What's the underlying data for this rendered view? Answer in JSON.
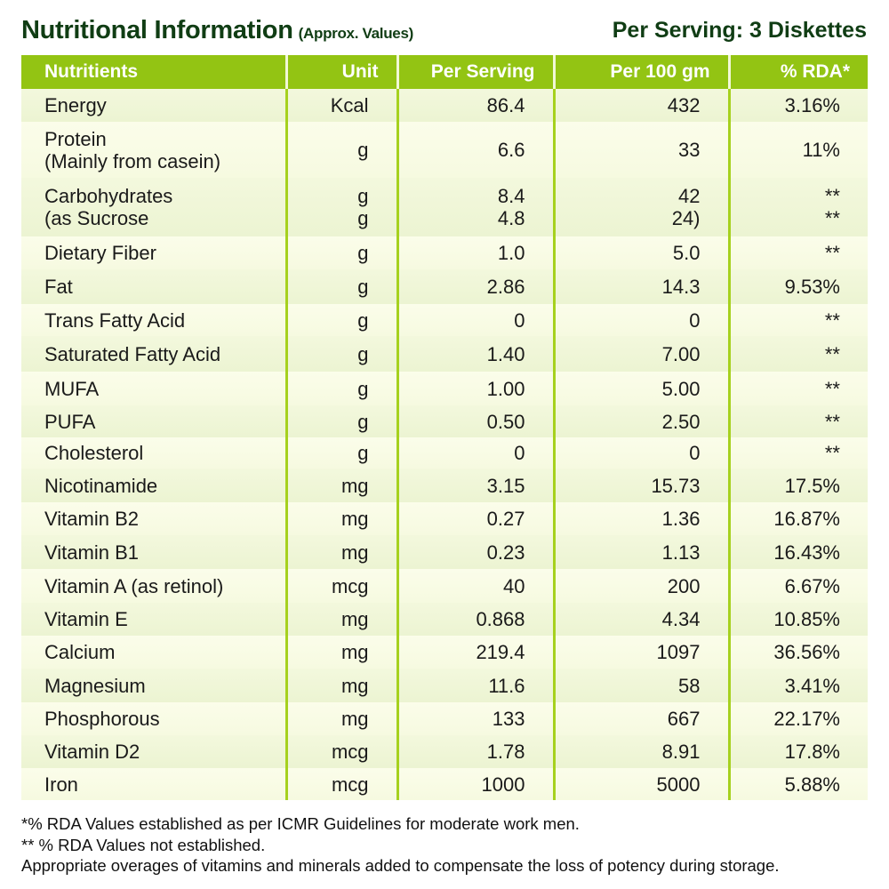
{
  "header": {
    "title": "Nutritional Information",
    "subtitle": "(Approx. Values)",
    "serving": "Per Serving: 3 Diskettes"
  },
  "colors": {
    "header_bg": "#93c413",
    "title": "#103d14",
    "divider": "#a6d11e"
  },
  "table": {
    "columns": [
      "Nutritients",
      "Unit",
      "Per Serving",
      "Per 100 gm",
      "% RDA*"
    ],
    "rows": [
      {
        "name": [
          "Energy"
        ],
        "unit": [
          "Kcal"
        ],
        "per_serving": [
          "86.4"
        ],
        "per_100": [
          "432"
        ],
        "rda": [
          "3.16%"
        ]
      },
      {
        "name": [
          "Protein",
          "(Mainly from casein)"
        ],
        "unit": [
          "g"
        ],
        "per_serving": [
          "6.6"
        ],
        "per_100": [
          "33"
        ],
        "rda": [
          "11%"
        ]
      },
      {
        "name": [
          "Carbohydrates",
          "(as Sucrose"
        ],
        "unit": [
          "g",
          "g"
        ],
        "per_serving": [
          "8.4",
          "4.8"
        ],
        "per_100": [
          "42",
          "24)"
        ],
        "rda": [
          "**",
          "**"
        ]
      },
      {
        "name": [
          "Dietary Fiber"
        ],
        "unit": [
          "g"
        ],
        "per_serving": [
          "1.0"
        ],
        "per_100": [
          "5.0"
        ],
        "rda": [
          "**"
        ]
      },
      {
        "name": [
          "Fat"
        ],
        "unit": [
          "g"
        ],
        "per_serving": [
          "2.86"
        ],
        "per_100": [
          "14.3"
        ],
        "rda": [
          "9.53%"
        ]
      },
      {
        "name": [
          "Trans Fatty Acid"
        ],
        "unit": [
          "g"
        ],
        "per_serving": [
          "0"
        ],
        "per_100": [
          "0"
        ],
        "rda": [
          "**"
        ]
      },
      {
        "name": [
          "Saturated Fatty Acid"
        ],
        "unit": [
          "g"
        ],
        "per_serving": [
          "1.40"
        ],
        "per_100": [
          "7.00"
        ],
        "rda": [
          "**"
        ]
      },
      {
        "name": [
          "MUFA"
        ],
        "unit": [
          "g"
        ],
        "per_serving": [
          "1.00"
        ],
        "per_100": [
          "5.00"
        ],
        "rda": [
          "**"
        ]
      },
      {
        "name": [
          "PUFA"
        ],
        "unit": [
          "g"
        ],
        "per_serving": [
          "0.50"
        ],
        "per_100": [
          "2.50"
        ],
        "rda": [
          "**"
        ]
      },
      {
        "name": [
          "Cholesterol"
        ],
        "unit": [
          "g"
        ],
        "per_serving": [
          "0"
        ],
        "per_100": [
          "0"
        ],
        "rda": [
          "**"
        ]
      },
      {
        "name": [
          "Nicotinamide"
        ],
        "unit": [
          "mg"
        ],
        "per_serving": [
          "3.15"
        ],
        "per_100": [
          "15.73"
        ],
        "rda": [
          "17.5%"
        ]
      },
      {
        "name": [
          "Vitamin B2"
        ],
        "unit": [
          "mg"
        ],
        "per_serving": [
          "0.27"
        ],
        "per_100": [
          "1.36"
        ],
        "rda": [
          "16.87%"
        ]
      },
      {
        "name": [
          "Vitamin B1"
        ],
        "unit": [
          "mg"
        ],
        "per_serving": [
          "0.23"
        ],
        "per_100": [
          "1.13"
        ],
        "rda": [
          "16.43%"
        ]
      },
      {
        "name": [
          "Vitamin A (as retinol)"
        ],
        "unit": [
          "mcg"
        ],
        "per_serving": [
          "40"
        ],
        "per_100": [
          "200"
        ],
        "rda": [
          "6.67%"
        ]
      },
      {
        "name": [
          "Vitamin E"
        ],
        "unit": [
          "mg"
        ],
        "per_serving": [
          "0.868"
        ],
        "per_100": [
          "4.34"
        ],
        "rda": [
          "10.85%"
        ]
      },
      {
        "name": [
          "Calcium"
        ],
        "unit": [
          "mg"
        ],
        "per_serving": [
          "219.4"
        ],
        "per_100": [
          "1097"
        ],
        "rda": [
          "36.56%"
        ]
      },
      {
        "name": [
          "Magnesium"
        ],
        "unit": [
          "mg"
        ],
        "per_serving": [
          "11.6"
        ],
        "per_100": [
          "58"
        ],
        "rda": [
          "3.41%"
        ]
      },
      {
        "name": [
          "Phosphorous"
        ],
        "unit": [
          "mg"
        ],
        "per_serving": [
          "133"
        ],
        "per_100": [
          "667"
        ],
        "rda": [
          "22.17%"
        ]
      },
      {
        "name": [
          "Vitamin D2"
        ],
        "unit": [
          "mcg"
        ],
        "per_serving": [
          "1.78"
        ],
        "per_100": [
          "8.91"
        ],
        "rda": [
          "17.8%"
        ]
      },
      {
        "name": [
          "Iron"
        ],
        "unit": [
          "mcg"
        ],
        "per_serving": [
          "1000"
        ],
        "per_100": [
          "5000"
        ],
        "rda": [
          "5.88%"
        ]
      }
    ]
  },
  "footnotes": [
    "*% RDA Values established as per ICMR Guidelines for moderate work men.",
    "** % RDA Values not established.",
    "Appropriate overages of vitamins and minerals added to compensate the loss of potency during storage."
  ]
}
